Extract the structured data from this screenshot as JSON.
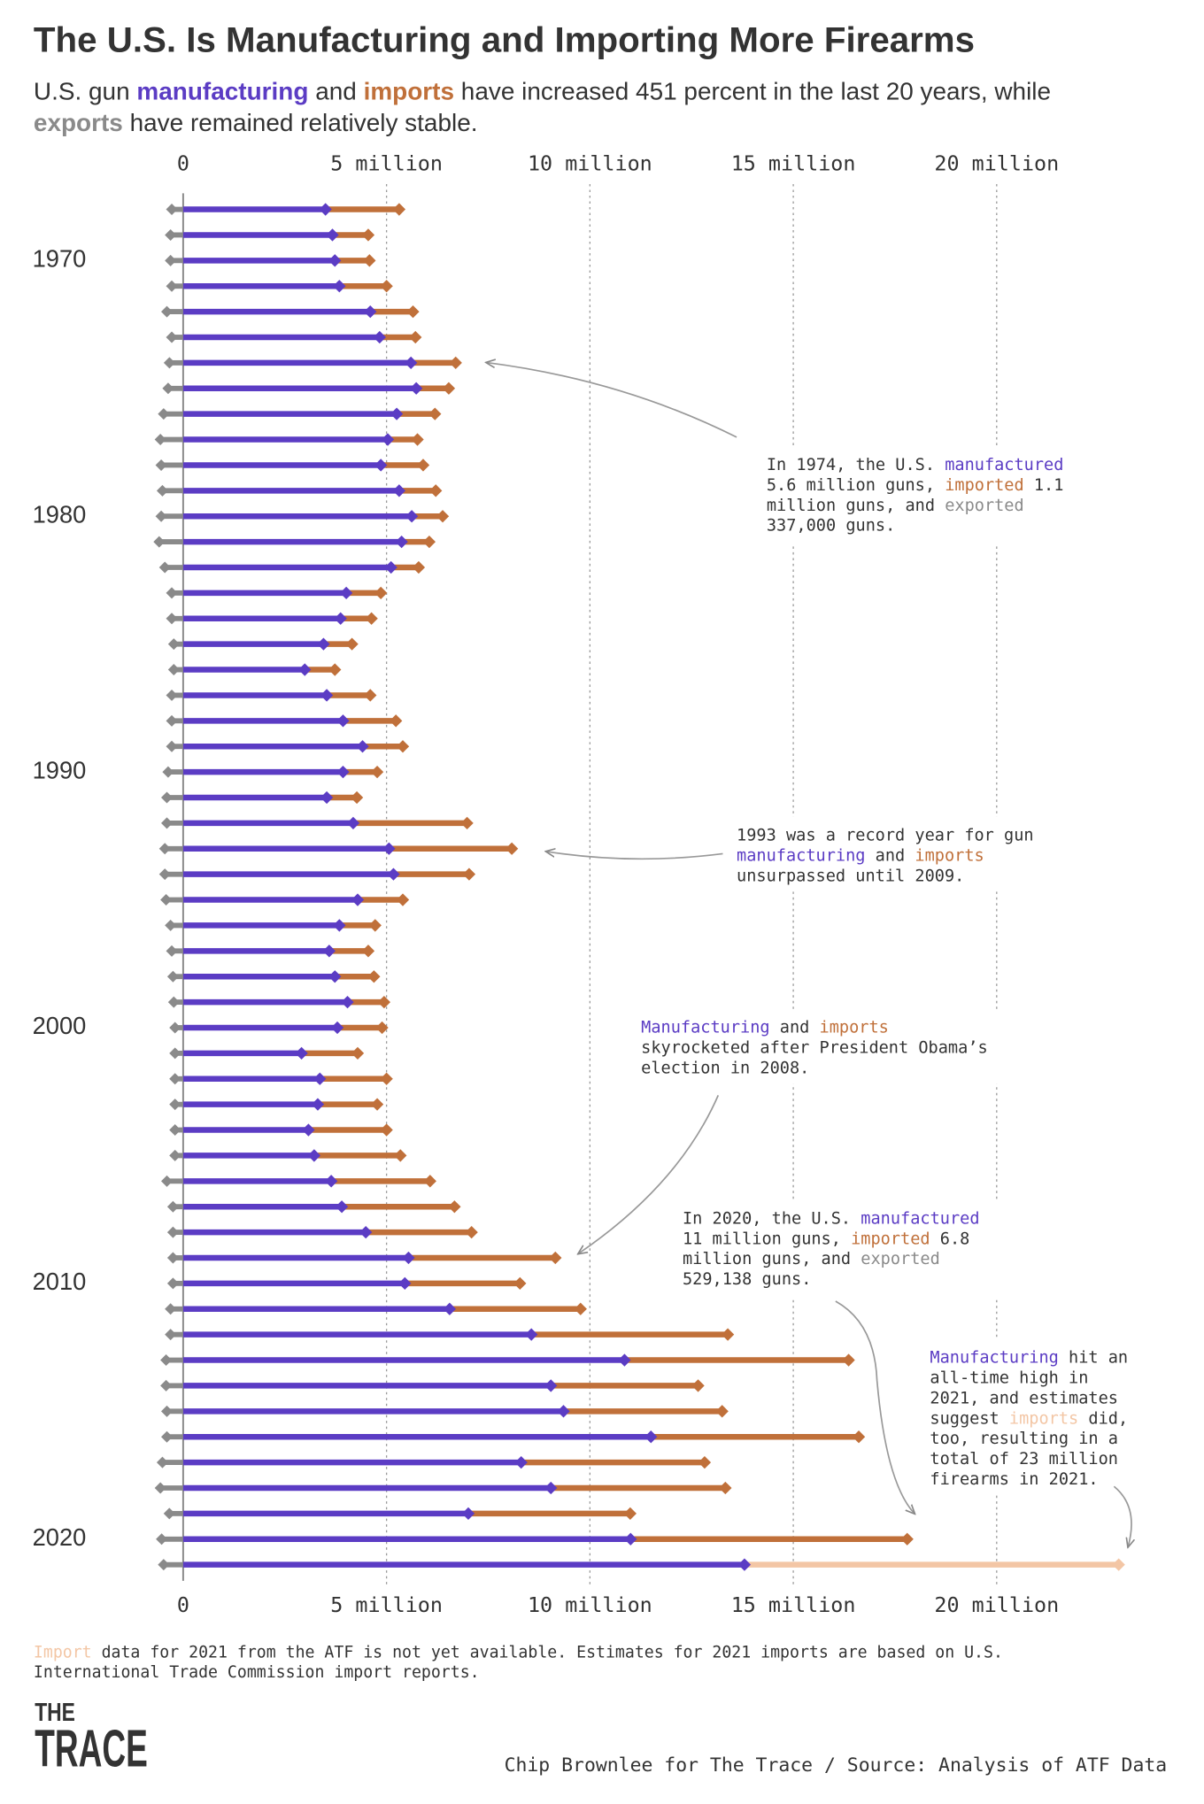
{
  "chart_data": {
    "type": "dumbbell",
    "title": "The U.S. Is Manufacturing and Importing More Firearms",
    "subtitle": [
      [
        {
          "text": "U.S. gun "
        },
        {
          "text": "manufacturing",
          "color": "#5b3cc4",
          "bold": true
        },
        {
          "text": " and "
        },
        {
          "text": "imports",
          "color": "#c0703a",
          "bold": true
        },
        {
          "text": " have increased 451 percent in the last 20 years, while"
        }
      ],
      [
        {
          "text": "exports",
          "color": "#8a8a8a",
          "bold": true
        },
        {
          "text": " have remained relatively stable."
        }
      ]
    ],
    "categories": [
      null,
      null,
      "1970",
      null,
      null,
      null,
      null,
      null,
      null,
      null,
      null,
      null,
      "1980",
      null,
      null,
      null,
      null,
      null,
      null,
      null,
      null,
      null,
      "1990",
      null,
      null,
      null,
      null,
      null,
      null,
      null,
      null,
      null,
      "2000",
      null,
      null,
      null,
      null,
      null,
      null,
      null,
      null,
      null,
      "2010",
      null,
      null,
      null,
      null,
      null,
      null,
      null,
      null,
      null,
      "2020",
      null
    ],
    "series": [
      {
        "name": "manufacturing",
        "color": "#5b3cc4",
        "values": [
          3.5,
          3.67,
          3.73,
          3.84,
          4.6,
          4.83,
          5.6,
          5.73,
          5.25,
          5.03,
          4.86,
          5.31,
          5.62,
          5.37,
          5.11,
          4.01,
          3.87,
          3.45,
          2.99,
          3.53,
          3.93,
          4.41,
          3.93,
          3.53,
          4.18,
          5.06,
          5.17,
          4.29,
          3.84,
          3.59,
          3.73,
          4.04,
          3.79,
          2.91,
          3.36,
          3.31,
          3.08,
          3.22,
          3.64,
          3.9,
          4.49,
          5.54,
          5.45,
          6.55,
          8.56,
          10.85,
          9.04,
          9.35,
          11.5,
          8.31,
          9.04,
          7.01,
          11.0,
          13.8
        ]
      },
      {
        "name": "imports",
        "color": "#c0703a",
        "estimate_color": "#f3c6a5",
        "estimated_index": 53,
        "stacked": true,
        "values": [
          1.81,
          0.88,
          0.85,
          1.16,
          1.05,
          0.88,
          1.1,
          0.8,
          0.94,
          0.73,
          1.04,
          0.9,
          0.76,
          0.68,
          0.68,
          0.85,
          0.76,
          0.7,
          0.74,
          1.07,
          1.3,
          0.99,
          0.84,
          0.74,
          2.8,
          3.02,
          1.86,
          1.11,
          0.88,
          0.96,
          0.96,
          0.9,
          1.1,
          1.38,
          1.64,
          1.46,
          1.92,
          2.12,
          2.43,
          2.77,
          2.6,
          3.61,
          2.83,
          3.22,
          4.83,
          5.51,
          3.62,
          3.9,
          5.11,
          4.51,
          4.29,
          3.98,
          6.8,
          9.2
        ]
      },
      {
        "name": "exports",
        "color": "#8a8a8a",
        "direction": "left",
        "values": [
          0.28,
          0.31,
          0.31,
          0.28,
          0.4,
          0.28,
          0.337,
          0.37,
          0.48,
          0.56,
          0.54,
          0.51,
          0.54,
          0.59,
          0.45,
          0.28,
          0.28,
          0.23,
          0.23,
          0.28,
          0.28,
          0.28,
          0.37,
          0.4,
          0.4,
          0.45,
          0.45,
          0.42,
          0.31,
          0.28,
          0.25,
          0.23,
          0.2,
          0.2,
          0.2,
          0.2,
          0.2,
          0.2,
          0.4,
          0.25,
          0.25,
          0.25,
          0.25,
          0.31,
          0.31,
          0.42,
          0.42,
          0.4,
          0.4,
          0.51,
          0.56,
          0.34,
          0.529,
          0.48
        ]
      }
    ],
    "xlim": [
      0,
      23.5
    ],
    "xticks": [
      0,
      {
        "value": 5,
        "label": "5 million"
      },
      {
        "value": 10,
        "label": "10 million"
      },
      {
        "value": 15,
        "label": "15 million"
      },
      {
        "value": 20,
        "label": "20 million"
      }
    ],
    "grid": true,
    "annotations": [
      [
        [
          {
            "text": "In 1974, the U.S. "
          },
          {
            "text": "manufactured",
            "color": "#5b3cc4"
          }
        ],
        [
          {
            "text": "5.6 million guns, "
          },
          {
            "text": "imported",
            "color": "#c0703a"
          },
          {
            "text": " 1.1"
          }
        ],
        [
          {
            "text": "million guns, and "
          },
          {
            "text": "exported",
            "color": "#8a8a8a"
          }
        ],
        [
          {
            "text": "337,000 guns."
          }
        ]
      ],
      [
        [
          {
            "text": "1993 was a record year for gun"
          }
        ],
        [
          {
            "text": "manufacturing",
            "color": "#5b3cc4"
          },
          {
            "text": " and "
          },
          {
            "text": "imports",
            "color": "#c0703a"
          }
        ],
        [
          {
            "text": "unsurpassed until 2009."
          }
        ]
      ],
      [
        [
          {
            "text": "Manufacturing",
            "color": "#5b3cc4"
          },
          {
            "text": " and "
          },
          {
            "text": "imports",
            "color": "#c0703a"
          }
        ],
        [
          {
            "text": "skyrocketed after President Obama’s"
          }
        ],
        [
          {
            "text": "election in 2008."
          }
        ]
      ],
      [
        [
          {
            "text": "In 2020, the U.S. "
          },
          {
            "text": "manufactured",
            "color": "#5b3cc4"
          }
        ],
        [
          {
            "text": "11 million guns, "
          },
          {
            "text": "imported",
            "color": "#c0703a"
          },
          {
            "text": " 6.8"
          }
        ],
        [
          {
            "text": "million guns, and "
          },
          {
            "text": "exported",
            "color": "#8a8a8a"
          }
        ],
        [
          {
            "text": "529,138 guns."
          }
        ]
      ],
      [
        [
          {
            "text": "Manufacturing",
            "color": "#5b3cc4"
          },
          {
            "text": " hit an"
          }
        ],
        [
          {
            "text": "all-time high in"
          }
        ],
        [
          {
            "text": "2021, and estimates"
          }
        ],
        [
          {
            "text": "suggest "
          },
          {
            "text": "imports",
            "color": "#f3c6a5"
          },
          {
            "text": " did,"
          }
        ],
        [
          {
            "text": "too, resulting in a"
          }
        ],
        [
          {
            "text": "total of 23 million"
          }
        ],
        [
          {
            "text": "firearms in 2021."
          }
        ]
      ]
    ],
    "footnote": [
      [
        {
          "text": "Import",
          "color": "#f3c6a5"
        },
        {
          "text": " data for 2021 from the ATF is not yet available. Estimates for 2021 imports are based on U.S."
        }
      ],
      [
        {
          "text": "International Trade Commission import reports."
        }
      ]
    ],
    "logo": [
      "THE",
      "TRACE"
    ],
    "credit": "Chip Brownlee for The Trace / Source: Analysis of ATF Data"
  }
}
